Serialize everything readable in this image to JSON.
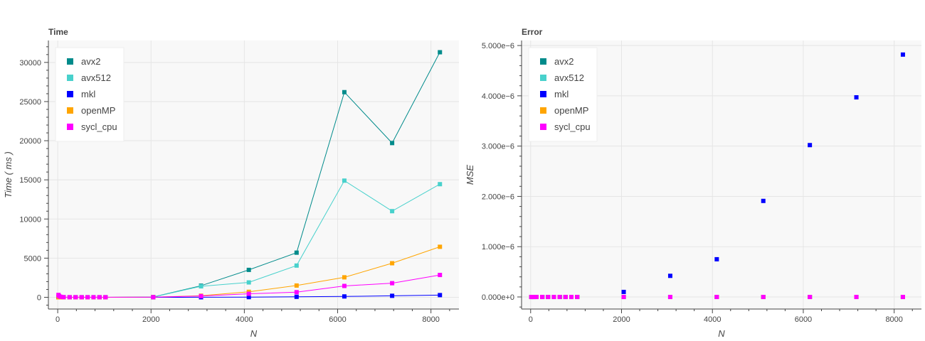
{
  "series_colors": {
    "avx2": "#008b8b",
    "avx512": "#48d1cc",
    "mkl": "#0000ff",
    "openMP": "#ffa500",
    "sycl_cpu": "#ff00ff"
  },
  "chart_data": [
    {
      "type": "line",
      "title": "Time",
      "xlabel": "N",
      "ylabel": "Time ( ms )",
      "xlim": [
        -200,
        8600
      ],
      "ylim": [
        -1500,
        32800
      ],
      "xticks": [
        0,
        2000,
        4000,
        6000,
        8000
      ],
      "yticks": [
        0,
        5000,
        10000,
        15000,
        20000,
        25000,
        30000
      ],
      "grid": true,
      "legend_position": "top-left",
      "x": [
        16,
        32,
        64,
        128,
        256,
        384,
        512,
        640,
        768,
        896,
        1024,
        2048,
        3072,
        4096,
        5120,
        6144,
        7168,
        8192
      ],
      "series": [
        {
          "name": "avx2",
          "values": [
            0,
            0,
            0,
            0,
            0,
            0,
            0,
            0,
            0,
            0,
            0,
            40,
            1480,
            3500,
            5700,
            26200,
            19700,
            31300
          ]
        },
        {
          "name": "avx512",
          "values": [
            0,
            0,
            0,
            0,
            0,
            0,
            0,
            0,
            0,
            0,
            0,
            30,
            1400,
            1900,
            4050,
            14900,
            11000,
            14450
          ]
        },
        {
          "name": "mkl",
          "values": [
            0,
            0,
            0,
            0,
            0,
            0,
            0,
            0,
            0,
            0,
            0,
            0,
            5,
            20,
            60,
            110,
            190,
            280
          ]
        },
        {
          "name": "openMP",
          "values": [
            0,
            0,
            0,
            0,
            0,
            0,
            0,
            0,
            0,
            0,
            0,
            20,
            200,
            700,
            1500,
            2550,
            4350,
            6450
          ]
        },
        {
          "name": "sycl_cpu",
          "values": [
            300,
            150,
            60,
            20,
            10,
            10,
            10,
            10,
            10,
            10,
            10,
            20,
            150,
            450,
            650,
            1450,
            1800,
            2850
          ]
        }
      ]
    },
    {
      "type": "scatter",
      "title": "Error",
      "xlabel": "N",
      "ylabel": "MSE",
      "xlim": [
        -200,
        8600
      ],
      "ylim": [
        -2.4e-07,
        5.1e-06
      ],
      "xticks": [
        0,
        2000,
        4000,
        6000,
        8000
      ],
      "yticks": [
        0,
        1e-06,
        2e-06,
        3e-06,
        4e-06,
        5e-06
      ],
      "ytick_labels": [
        "0.000e+0",
        "1.000e−6",
        "2.000e−6",
        "3.000e−6",
        "4.000e−6",
        "5.000e−6"
      ],
      "grid": true,
      "legend_position": "top-left",
      "x": [
        16,
        32,
        64,
        128,
        256,
        384,
        512,
        640,
        768,
        896,
        1024,
        2048,
        3072,
        4096,
        5120,
        6144,
        7168,
        8192
      ],
      "series": [
        {
          "name": "avx2",
          "values": [
            0,
            0,
            0,
            0,
            0,
            0,
            0,
            0,
            0,
            0,
            0,
            0,
            0,
            0,
            0,
            0,
            0,
            0
          ]
        },
        {
          "name": "avx512",
          "values": [
            0,
            0,
            0,
            0,
            0,
            0,
            0,
            0,
            0,
            0,
            0,
            0,
            0,
            0,
            0,
            0,
            0,
            0
          ]
        },
        {
          "name": "mkl",
          "values": [
            0,
            0,
            0,
            0,
            0,
            0,
            0,
            0,
            0,
            0,
            0,
            1e-07,
            4.2e-07,
            7.5e-07,
            1.91e-06,
            3.02e-06,
            3.97e-06,
            4.82e-06
          ]
        },
        {
          "name": "openMP",
          "values": [
            0,
            0,
            0,
            0,
            0,
            0,
            0,
            0,
            0,
            0,
            0,
            0,
            0,
            0,
            0,
            0,
            0,
            0
          ]
        },
        {
          "name": "sycl_cpu",
          "values": [
            0,
            0,
            0,
            0,
            0,
            0,
            0,
            0,
            0,
            0,
            0,
            0,
            0,
            0,
            0,
            0,
            0,
            0
          ]
        }
      ]
    }
  ]
}
